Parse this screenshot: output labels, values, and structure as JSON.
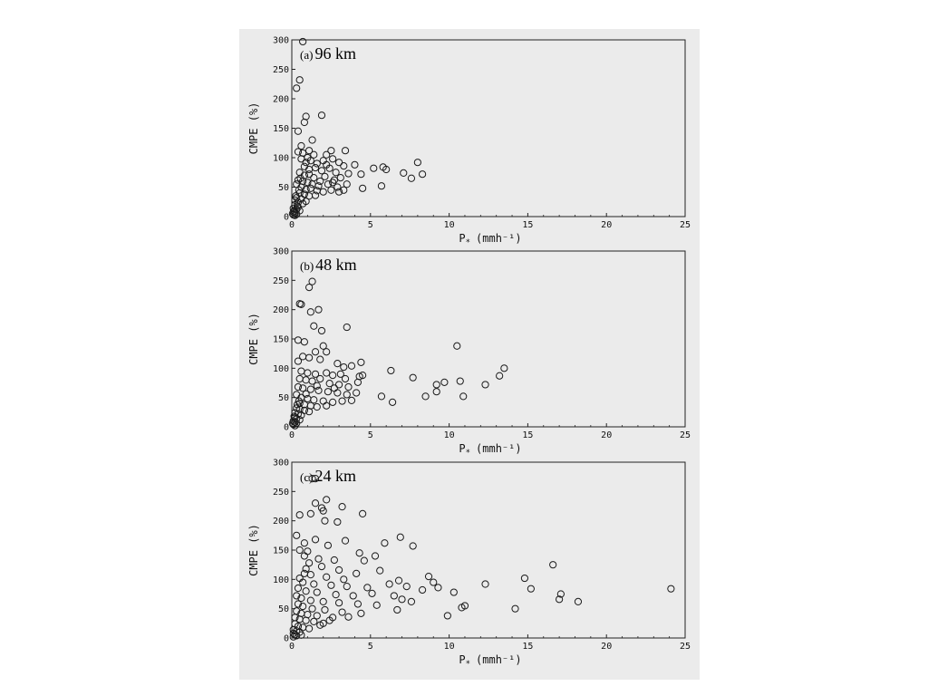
{
  "chart_data": [
    {
      "type": "scatter",
      "panel_letter": "(a)",
      "title": "96 km",
      "xlabel": "P",
      "xlabel_subscript": "*",
      "xlabel_unit": "(mmh⁻¹)",
      "ylabel": "CMPE (%)",
      "xlim": [
        0,
        25
      ],
      "ylim": [
        0,
        300
      ],
      "xticks": [
        0,
        5,
        10,
        15,
        20,
        25
      ],
      "yticks": [
        0,
        50,
        100,
        150,
        200,
        250,
        300
      ],
      "marker": "open-circle",
      "grid": false,
      "points": [
        [
          0.7,
          297
        ],
        [
          0.5,
          232
        ],
        [
          0.3,
          218
        ],
        [
          0.9,
          170
        ],
        [
          1.9,
          172
        ],
        [
          0.8,
          160
        ],
        [
          0.4,
          145
        ],
        [
          1.3,
          130
        ],
        [
          0.6,
          120
        ],
        [
          0.4,
          110
        ],
        [
          0.7,
          108
        ],
        [
          1.1,
          112
        ],
        [
          1.4,
          105
        ],
        [
          2.2,
          105
        ],
        [
          2.5,
          112
        ],
        [
          3.4,
          112
        ],
        [
          0.6,
          98
        ],
        [
          0.9,
          92
        ],
        [
          1.2,
          95
        ],
        [
          1.6,
          90
        ],
        [
          2.0,
          95
        ],
        [
          2.6,
          98
        ],
        [
          3.0,
          92
        ],
        [
          3.3,
          86
        ],
        [
          4.0,
          88
        ],
        [
          0.8,
          85
        ],
        [
          1.1,
          80
        ],
        [
          1.5,
          83
        ],
        [
          1.9,
          78
        ],
        [
          2.4,
          82
        ],
        [
          2.8,
          75
        ],
        [
          3.6,
          73
        ],
        [
          4.4,
          72
        ],
        [
          5.2,
          82
        ],
        [
          5.8,
          84
        ],
        [
          6.0,
          80
        ],
        [
          7.1,
          74
        ],
        [
          7.6,
          65
        ],
        [
          8.0,
          92
        ],
        [
          8.3,
          72
        ],
        [
          0.5,
          75
        ],
        [
          0.8,
          70
        ],
        [
          1.1,
          72
        ],
        [
          1.4,
          66
        ],
        [
          2.1,
          68
        ],
        [
          2.7,
          62
        ],
        [
          3.1,
          66
        ],
        [
          0.4,
          62
        ],
        [
          0.7,
          60
        ],
        [
          1.0,
          58
        ],
        [
          1.3,
          55
        ],
        [
          1.7,
          52
        ],
        [
          2.3,
          55
        ],
        [
          2.9,
          50
        ],
        [
          3.3,
          45
        ],
        [
          4.5,
          48
        ],
        [
          5.7,
          52
        ],
        [
          0.3,
          55
        ],
        [
          0.6,
          50
        ],
        [
          0.9,
          46
        ],
        [
          1.2,
          48
        ],
        [
          1.6,
          44
        ],
        [
          2.0,
          42
        ],
        [
          2.5,
          45
        ],
        [
          3.0,
          42
        ],
        [
          0.5,
          40
        ],
        [
          0.8,
          38
        ],
        [
          1.1,
          35
        ],
        [
          1.5,
          36
        ],
        [
          0.3,
          32
        ],
        [
          0.6,
          30
        ],
        [
          0.9,
          26
        ],
        [
          0.2,
          28
        ],
        [
          0.4,
          24
        ],
        [
          0.7,
          22
        ],
        [
          0.2,
          20
        ],
        [
          0.4,
          16
        ],
        [
          0.1,
          14
        ],
        [
          0.3,
          12
        ],
        [
          0.5,
          10
        ],
        [
          0.1,
          8
        ],
        [
          0.2,
          6
        ],
        [
          0.3,
          4
        ],
        [
          0.1,
          3
        ],
        [
          0.2,
          2
        ],
        [
          0.05,
          5
        ],
        [
          0.15,
          10
        ],
        [
          0.35,
          18
        ],
        [
          0.25,
          35
        ],
        [
          0.45,
          45
        ],
        [
          0.55,
          65
        ],
        [
          1.0,
          100
        ],
        [
          1.8,
          60
        ],
        [
          2.2,
          88
        ],
        [
          3.5,
          55
        ],
        [
          2.6,
          58
        ]
      ]
    },
    {
      "type": "scatter",
      "panel_letter": "(b)",
      "title": "48 km",
      "xlabel": "P",
      "xlabel_subscript": "*",
      "xlabel_unit": "(mmh⁻¹)",
      "ylabel": "CMPE (%)",
      "xlim": [
        0,
        25
      ],
      "ylim": [
        0,
        300
      ],
      "xticks": [
        0,
        5,
        10,
        15,
        20,
        25
      ],
      "yticks": [
        0,
        50,
        100,
        150,
        200,
        250,
        300
      ],
      "marker": "open-circle",
      "grid": false,
      "points": [
        [
          1.3,
          248
        ],
        [
          1.1,
          238
        ],
        [
          0.5,
          210
        ],
        [
          0.6,
          209
        ],
        [
          1.7,
          200
        ],
        [
          1.2,
          196
        ],
        [
          1.4,
          172
        ],
        [
          3.5,
          170
        ],
        [
          1.9,
          164
        ],
        [
          0.4,
          148
        ],
        [
          0.8,
          145
        ],
        [
          2.0,
          138
        ],
        [
          10.5,
          138
        ],
        [
          1.5,
          128
        ],
        [
          2.2,
          128
        ],
        [
          0.7,
          120
        ],
        [
          1.1,
          118
        ],
        [
          1.8,
          115
        ],
        [
          0.4,
          112
        ],
        [
          2.9,
          108
        ],
        [
          3.3,
          102
        ],
        [
          3.8,
          104
        ],
        [
          4.4,
          110
        ],
        [
          13.5,
          100
        ],
        [
          0.6,
          95
        ],
        [
          1.0,
          92
        ],
        [
          1.5,
          90
        ],
        [
          2.2,
          92
        ],
        [
          2.6,
          88
        ],
        [
          3.1,
          90
        ],
        [
          4.5,
          88
        ],
        [
          6.3,
          96
        ],
        [
          7.7,
          84
        ],
        [
          9.7,
          76
        ],
        [
          10.7,
          78
        ],
        [
          13.2,
          87
        ],
        [
          12.3,
          72
        ],
        [
          9.2,
          72
        ],
        [
          0.5,
          82
        ],
        [
          0.9,
          80
        ],
        [
          1.3,
          78
        ],
        [
          1.8,
          82
        ],
        [
          2.4,
          74
        ],
        [
          3.0,
          72
        ],
        [
          3.6,
          68
        ],
        [
          4.2,
          76
        ],
        [
          0.4,
          68
        ],
        [
          0.7,
          66
        ],
        [
          1.2,
          64
        ],
        [
          1.7,
          62
        ],
        [
          2.3,
          60
        ],
        [
          2.9,
          58
        ],
        [
          3.5,
          55
        ],
        [
          4.1,
          58
        ],
        [
          9.2,
          60
        ],
        [
          5.7,
          52
        ],
        [
          8.5,
          52
        ],
        [
          10.9,
          52
        ],
        [
          6.4,
          42
        ],
        [
          0.3,
          55
        ],
        [
          0.6,
          50
        ],
        [
          1.0,
          48
        ],
        [
          1.4,
          46
        ],
        [
          2.0,
          44
        ],
        [
          2.6,
          42
        ],
        [
          3.2,
          44
        ],
        [
          3.8,
          45
        ],
        [
          0.5,
          40
        ],
        [
          0.8,
          38
        ],
        [
          1.2,
          36
        ],
        [
          1.6,
          34
        ],
        [
          2.2,
          36
        ],
        [
          0.3,
          32
        ],
        [
          0.5,
          30
        ],
        [
          0.8,
          28
        ],
        [
          1.1,
          26
        ],
        [
          0.2,
          24
        ],
        [
          0.4,
          22
        ],
        [
          0.6,
          20
        ],
        [
          0.2,
          16
        ],
        [
          0.3,
          14
        ],
        [
          0.5,
          12
        ],
        [
          0.1,
          10
        ],
        [
          0.2,
          8
        ],
        [
          0.3,
          6
        ],
        [
          0.1,
          4
        ],
        [
          0.2,
          2
        ],
        [
          0.05,
          6
        ],
        [
          0.15,
          18
        ],
        [
          0.35,
          38
        ],
        [
          0.45,
          44
        ],
        [
          0.9,
          56
        ],
        [
          1.6,
          70
        ],
        [
          2.7,
          66
        ],
        [
          3.4,
          82
        ],
        [
          4.3,
          86
        ]
      ]
    },
    {
      "type": "scatter",
      "panel_letter": "(c)",
      "title": "24 km",
      "xlabel": "P",
      "xlabel_subscript": "*",
      "xlabel_unit": "(mmh⁻¹)",
      "ylabel": "CMPE (%)",
      "xlim": [
        0,
        25
      ],
      "ylim": [
        0,
        300
      ],
      "xticks": [
        0,
        5,
        10,
        15,
        20,
        25
      ],
      "yticks": [
        0,
        50,
        100,
        150,
        200,
        250,
        300
      ],
      "marker": "open-circle",
      "grid": false,
      "points": [
        [
          1.3,
          272
        ],
        [
          1.5,
          272
        ],
        [
          2.2,
          236
        ],
        [
          1.5,
          230
        ],
        [
          3.2,
          224
        ],
        [
          1.9,
          222
        ],
        [
          2.0,
          217
        ],
        [
          4.5,
          212
        ],
        [
          0.5,
          210
        ],
        [
          1.2,
          212
        ],
        [
          2.1,
          200
        ],
        [
          2.9,
          198
        ],
        [
          0.3,
          175
        ],
        [
          6.9,
          172
        ],
        [
          1.5,
          168
        ],
        [
          3.4,
          166
        ],
        [
          5.9,
          162
        ],
        [
          0.8,
          162
        ],
        [
          2.3,
          158
        ],
        [
          7.7,
          157
        ],
        [
          0.5,
          150
        ],
        [
          1.0,
          148
        ],
        [
          4.3,
          145
        ],
        [
          5.3,
          140
        ],
        [
          0.8,
          140
        ],
        [
          1.7,
          135
        ],
        [
          2.7,
          133
        ],
        [
          4.6,
          132
        ],
        [
          16.6,
          125
        ],
        [
          0.9,
          118
        ],
        [
          1.9,
          122
        ],
        [
          3.0,
          116
        ],
        [
          4.1,
          110
        ],
        [
          5.6,
          115
        ],
        [
          1.2,
          108
        ],
        [
          2.2,
          104
        ],
        [
          3.3,
          100
        ],
        [
          0.5,
          102
        ],
        [
          6.8,
          98
        ],
        [
          8.7,
          105
        ],
        [
          9.0,
          95
        ],
        [
          12.3,
          92
        ],
        [
          14.8,
          102
        ],
        [
          15.2,
          84
        ],
        [
          17.1,
          75
        ],
        [
          18.2,
          62
        ],
        [
          24.1,
          84
        ],
        [
          0.7,
          95
        ],
        [
          1.4,
          92
        ],
        [
          2.5,
          90
        ],
        [
          3.5,
          88
        ],
        [
          4.8,
          86
        ],
        [
          6.2,
          92
        ],
        [
          7.3,
          88
        ],
        [
          8.3,
          82
        ],
        [
          9.3,
          86
        ],
        [
          10.8,
          52
        ],
        [
          11.0,
          55
        ],
        [
          10.3,
          78
        ],
        [
          14.2,
          50
        ],
        [
          0.4,
          85
        ],
        [
          0.9,
          80
        ],
        [
          1.6,
          78
        ],
        [
          2.8,
          74
        ],
        [
          3.9,
          72
        ],
        [
          5.1,
          76
        ],
        [
          6.5,
          72
        ],
        [
          7.0,
          66
        ],
        [
          7.6,
          62
        ],
        [
          9.9,
          38
        ],
        [
          0.3,
          72
        ],
        [
          0.6,
          68
        ],
        [
          1.2,
          64
        ],
        [
          2.0,
          62
        ],
        [
          3.0,
          60
        ],
        [
          4.2,
          58
        ],
        [
          5.4,
          56
        ],
        [
          6.7,
          48
        ],
        [
          0.4,
          58
        ],
        [
          0.7,
          54
        ],
        [
          1.3,
          50
        ],
        [
          2.1,
          48
        ],
        [
          3.2,
          44
        ],
        [
          4.4,
          42
        ],
        [
          0.3,
          46
        ],
        [
          0.6,
          42
        ],
        [
          1.0,
          40
        ],
        [
          1.6,
          38
        ],
        [
          2.6,
          35
        ],
        [
          0.2,
          35
        ],
        [
          0.5,
          32
        ],
        [
          0.9,
          30
        ],
        [
          1.4,
          28
        ],
        [
          2.0,
          25
        ],
        [
          0.2,
          24
        ],
        [
          0.4,
          20
        ],
        [
          0.7,
          18
        ],
        [
          1.1,
          16
        ],
        [
          0.1,
          14
        ],
        [
          0.3,
          12
        ],
        [
          0.5,
          10
        ],
        [
          0.1,
          8
        ],
        [
          0.2,
          6
        ],
        [
          0.3,
          4
        ],
        [
          0.1,
          2
        ],
        [
          0.6,
          5
        ],
        [
          1.8,
          22
        ],
        [
          2.4,
          30
        ],
        [
          3.6,
          36
        ],
        [
          17.0,
          66
        ],
        [
          0.8,
          110
        ],
        [
          1.1,
          128
        ]
      ]
    }
  ]
}
